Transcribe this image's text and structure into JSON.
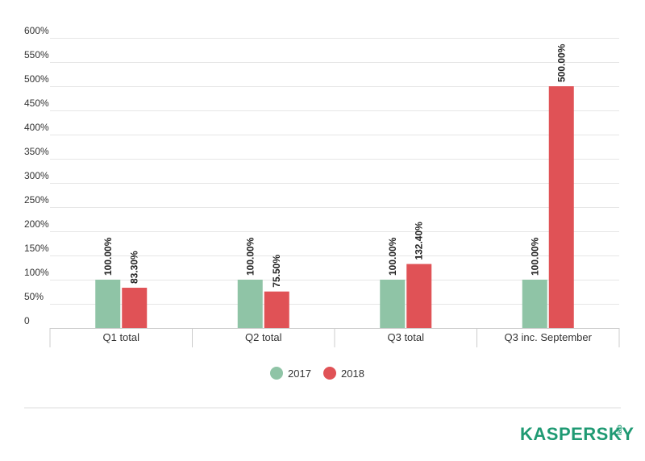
{
  "chart_data": {
    "type": "bar",
    "categories": [
      "Q1 total",
      "Q2 total",
      "Q3 total",
      "Q3 inc. September"
    ],
    "series": [
      {
        "name": "2017",
        "values": [
          100.0,
          100.0,
          100.0,
          100.0
        ],
        "labels": [
          "100.00%",
          "100.00%",
          "100.00%",
          "100.00%"
        ]
      },
      {
        "name": "2018",
        "values": [
          83.3,
          75.5,
          132.4,
          500.0
        ],
        "labels": [
          "83.30%",
          "75.50%",
          "132.40%",
          "500.00%"
        ]
      }
    ],
    "y_ticks": [
      "0",
      "50%",
      "100%",
      "150%",
      "200%",
      "250%",
      "300%",
      "350%",
      "400%",
      "450%",
      "500%",
      "550%",
      "600%"
    ],
    "ylim": [
      0,
      600
    ],
    "grid": true,
    "legend_position": "bottom-center"
  },
  "colors": {
    "2017": "#8fc4a6",
    "2018": "#e05256",
    "logo": "#1f9a73"
  },
  "logo": {
    "text": "KASPERSKY",
    "sub": "lab"
  }
}
